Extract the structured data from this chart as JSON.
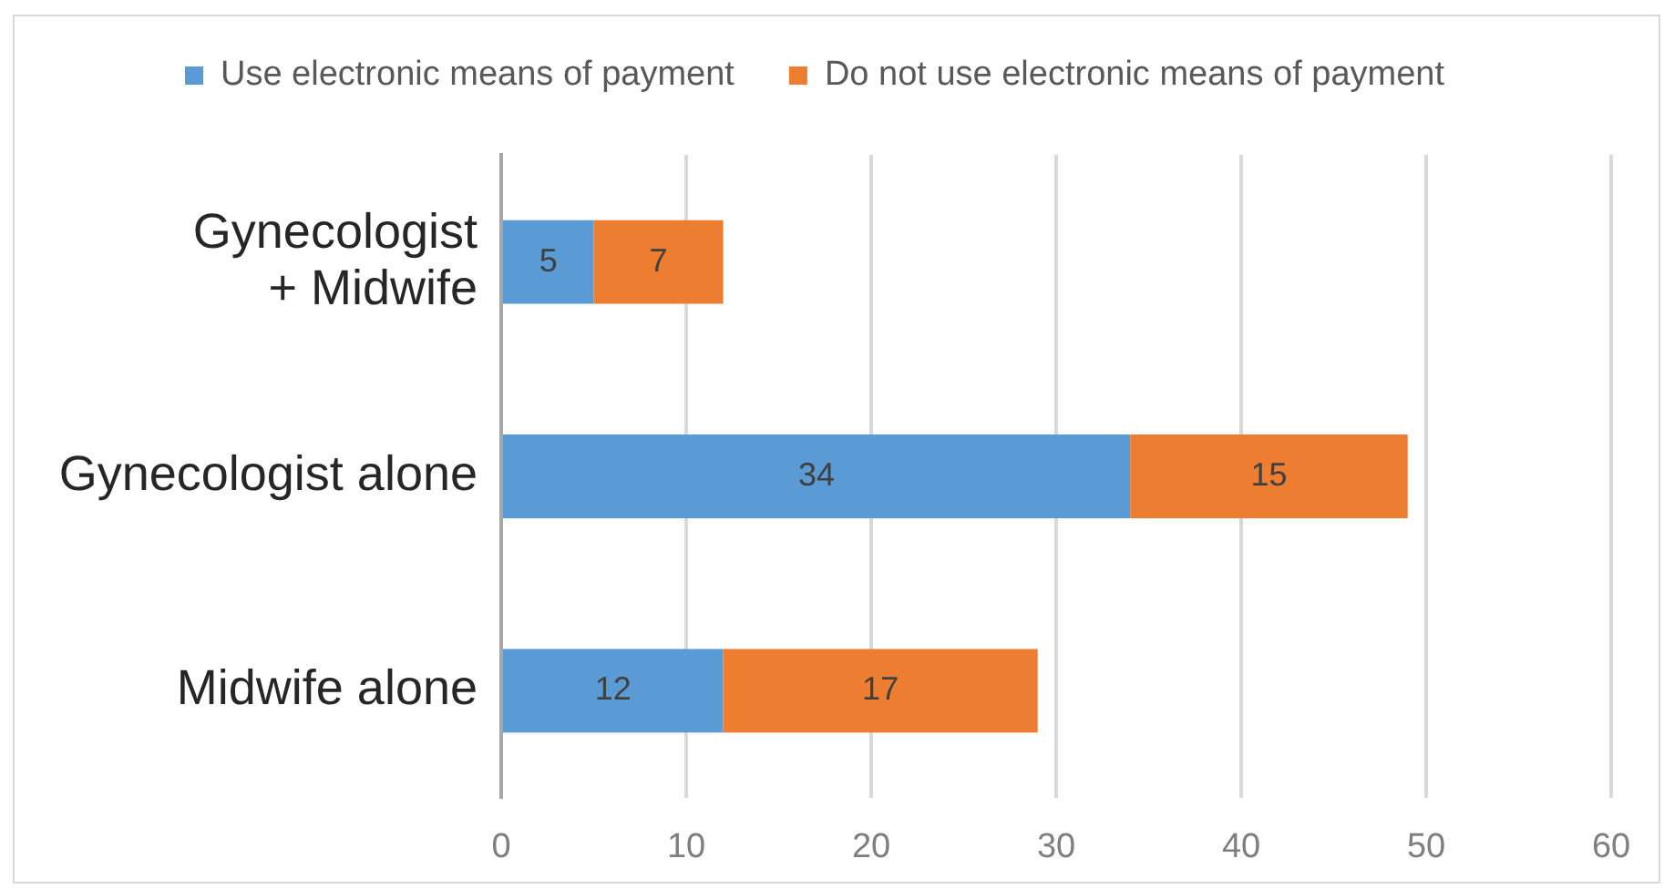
{
  "chart_data": {
    "type": "bar",
    "orientation": "horizontal",
    "stacked": true,
    "categories": [
      "Gynecologist + Midwife",
      "Gynecologist alone",
      "Midwife alone"
    ],
    "series": [
      {
        "name": "Use electronic means of payment",
        "color": "#5b9bd5",
        "values": [
          5,
          34,
          12
        ]
      },
      {
        "name": "Do not use electronic means of payment",
        "color": "#ed7d31",
        "values": [
          7,
          15,
          17
        ]
      }
    ],
    "xlim": [
      0,
      60
    ],
    "xticks": [
      0,
      10,
      20,
      30,
      40,
      50,
      60
    ],
    "grid": "x",
    "legend": "top",
    "data_labels": true
  }
}
